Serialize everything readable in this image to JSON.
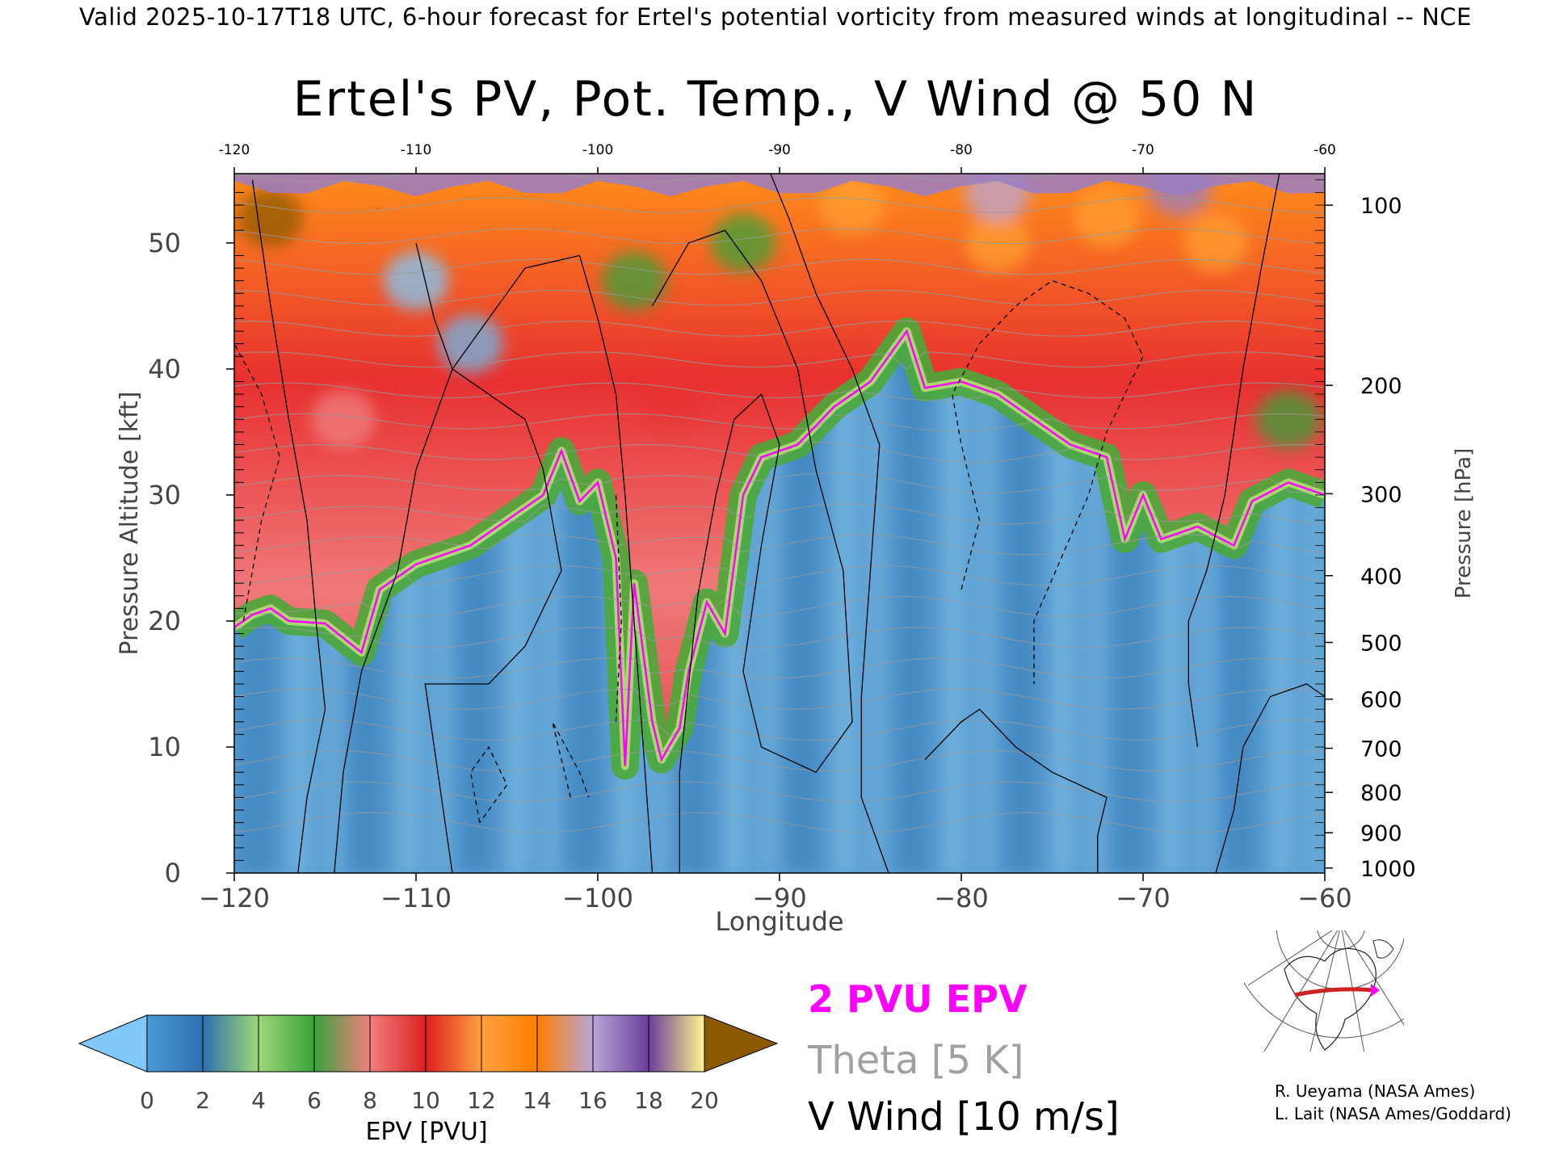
{
  "header_text": "Valid 2025-10-17T18 UTC, 6-hour forecast for Ertel's potential vorticity from measured winds at longitudinal -- NCE",
  "chart_data": {
    "type": "heatmap",
    "title": "Ertel's PV, Pot. Temp., V Wind @ 50 N",
    "xlabel": "Longitude",
    "ylabel": "Pressure Altitude [kft]",
    "y2label": "Pressure [hPa]",
    "xlim": [
      -120,
      -60
    ],
    "ylim": [
      0,
      55.5
    ],
    "x_ticks": [
      -120,
      -110,
      -100,
      -90,
      -80,
      -70,
      -60
    ],
    "x_tick_labels": [
      "−120",
      "−110",
      "−100",
      "−90",
      "−80",
      "−70",
      "−60"
    ],
    "x_top_tick_labels": [
      "-120",
      "-110",
      "-100",
      "-90",
      "-80",
      "-70",
      "-60"
    ],
    "y_ticks": [
      0,
      10,
      20,
      30,
      40,
      50
    ],
    "pressure_ticks": [
      {
        "hpa": 100,
        "kft": 53.0
      },
      {
        "hpa": 200,
        "kft": 38.7
      },
      {
        "hpa": 300,
        "kft": 30.1
      },
      {
        "hpa": 400,
        "kft": 23.6
      },
      {
        "hpa": 500,
        "kft": 18.3
      },
      {
        "hpa": 600,
        "kft": 13.8
      },
      {
        "hpa": 700,
        "kft": 9.9
      },
      {
        "hpa": 800,
        "kft": 6.4
      },
      {
        "hpa": 900,
        "kft": 3.2
      },
      {
        "hpa": 1000,
        "kft": 0.4
      }
    ],
    "tropopause_2pvu_kft": [
      [
        -120,
        19.5
      ],
      [
        -119,
        20.5
      ],
      [
        -118,
        21
      ],
      [
        -117,
        20
      ],
      [
        -115,
        19.8
      ],
      [
        -113,
        17.5
      ],
      [
        -112,
        22.5
      ],
      [
        -110,
        24.5
      ],
      [
        -107,
        26
      ],
      [
        -105,
        28
      ],
      [
        -103,
        30
      ],
      [
        -102,
        33.5
      ],
      [
        -101,
        29.5
      ],
      [
        -100,
        31
      ],
      [
        -99,
        25
      ],
      [
        -98.5,
        8.5
      ],
      [
        -98,
        23
      ],
      [
        -97,
        12
      ],
      [
        -96.5,
        9
      ],
      [
        -95.5,
        11.5
      ],
      [
        -95,
        16
      ],
      [
        -94,
        21.5
      ],
      [
        -93,
        19
      ],
      [
        -92,
        30
      ],
      [
        -91,
        33
      ],
      [
        -89,
        34
      ],
      [
        -87,
        37
      ],
      [
        -85,
        39
      ],
      [
        -83,
        43
      ],
      [
        -82,
        38.5
      ],
      [
        -80,
        39
      ],
      [
        -78,
        38
      ],
      [
        -76,
        36
      ],
      [
        -74,
        34
      ],
      [
        -72,
        33
      ],
      [
        -71,
        26.5
      ],
      [
        -70,
        30
      ],
      [
        -69,
        26.5
      ],
      [
        -67,
        27.5
      ],
      [
        -65,
        26
      ],
      [
        -64,
        29.5
      ],
      [
        -62,
        31
      ],
      [
        -60,
        30
      ]
    ],
    "colorbar": {
      "label": "EPV [PVU]",
      "ticks": [
        0,
        2,
        4,
        6,
        8,
        10,
        12,
        14,
        16,
        18,
        20
      ],
      "colors": [
        "#4a9ad6",
        "#2e6fb0",
        "#9ed67a",
        "#3aa23a",
        "#f08080",
        "#dd2020",
        "#ffa040",
        "#ff7f00",
        "#b8a6d8",
        "#6a3d9a",
        "#fff68f",
        "#8b5a00"
      ],
      "under_color": "#80c8f8",
      "over_color": "#8b5a00"
    },
    "legend": [
      {
        "label": "2 PVU EPV",
        "color": "#ff00ff"
      },
      {
        "label": "Theta [5 K]",
        "color": "#a0a0a0"
      },
      {
        "label": "V Wind [10 m/s]",
        "color": "#000000"
      }
    ]
  },
  "credits": [
    "R. Ueyama (NASA Ames)",
    "L. Lait (NASA Ames/Goddard)"
  ]
}
